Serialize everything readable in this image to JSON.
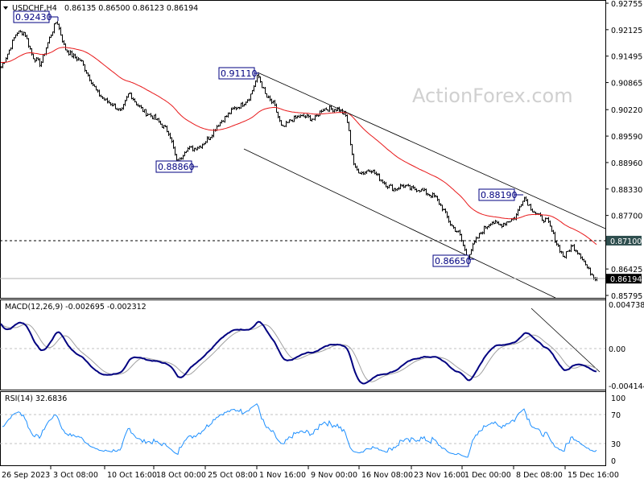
{
  "header": {
    "symbol": "USDCHF,H4",
    "ohlc": "0.86135 0.86500 0.86123 0.86194"
  },
  "watermark": "ActionForex.com",
  "colors": {
    "ma": "#e8191b",
    "macd": "#000080",
    "signal": "#a0a0a0",
    "bars": "#000000",
    "rsi": "#1e90ff",
    "level_box": "#2f4f4f"
  },
  "chart_data": [
    {
      "type": "ohlc",
      "title": "USDCHF,H4",
      "ylim": [
        0.85795,
        0.92755
      ],
      "yticks": [
        "0.92755",
        "0.92125",
        "0.91495",
        "0.90865",
        "0.90220",
        "0.89590",
        "0.88960",
        "0.88330",
        "0.87700",
        "0.87100",
        "0.86425",
        "0.85795"
      ],
      "xticks": [
        "26 Sep 2023",
        "3 Oct 08:00",
        "10 Oct 16:00",
        "18 Oct 00:00",
        "25 Oct 08:00",
        "1 Nov 16:00",
        "9 Nov 00:00",
        "16 Nov 08:00",
        "23 Nov 16:00",
        "1 Dec 00:00",
        "8 Dec 08:00",
        "15 Dec 16:00"
      ],
      "approx_closes": [
        0.912,
        0.9159,
        0.9206,
        0.9206,
        0.9149,
        0.913,
        0.9187,
        0.9235,
        0.9168,
        0.9149,
        0.9139,
        0.9101,
        0.9063,
        0.9044,
        0.9034,
        0.9015,
        0.9063,
        0.9034,
        0.9015,
        0.9005,
        0.8986,
        0.8967,
        0.889,
        0.8929,
        0.8929,
        0.8938,
        0.8957,
        0.8986,
        0.9005,
        0.9024,
        0.9034,
        0.9053,
        0.9105,
        0.9053,
        0.9034,
        0.8976,
        0.8996,
        0.9005,
        0.9005,
        0.8999,
        0.9024,
        0.9024,
        0.9024,
        0.9005,
        0.8881,
        0.8871,
        0.8881,
        0.8861,
        0.8842,
        0.8833,
        0.8842,
        0.8833,
        0.8833,
        0.8823,
        0.8814,
        0.8785,
        0.8746,
        0.8727,
        0.867,
        0.8708,
        0.8737,
        0.8756,
        0.8746,
        0.8756,
        0.8766,
        0.8815,
        0.8785,
        0.8766,
        0.8756,
        0.8708,
        0.867,
        0.8698,
        0.8679,
        0.8641,
        0.86194
      ],
      "last_price": "0.86194",
      "level": "0.87100",
      "annotations": [
        "0.92430",
        "0.91110",
        "0.88860",
        "0.86650",
        "0.88190"
      ],
      "channel": {
        "upper": [
          [
            0.9105,
            "1 Nov"
          ],
          [
            0.873,
            "19 Dec"
          ]
        ],
        "lower": [
          [
            0.8945,
            "30 Oct"
          ],
          [
            0.858,
            "18 Dec"
          ]
        ]
      }
    },
    {
      "type": "line",
      "title": "MACD(12,26,9) -0.002695 -0.002312",
      "ylim": [
        -0.004144,
        0.004738
      ],
      "yticks": [
        "0.004738",
        "0.00",
        "-0.004144"
      ]
    },
    {
      "type": "line",
      "title": "RSI(14) 32.6836",
      "ylim": [
        0,
        100
      ],
      "yticks": [
        "100",
        "70",
        "30",
        "0"
      ],
      "levels": [
        70,
        30
      ]
    }
  ]
}
